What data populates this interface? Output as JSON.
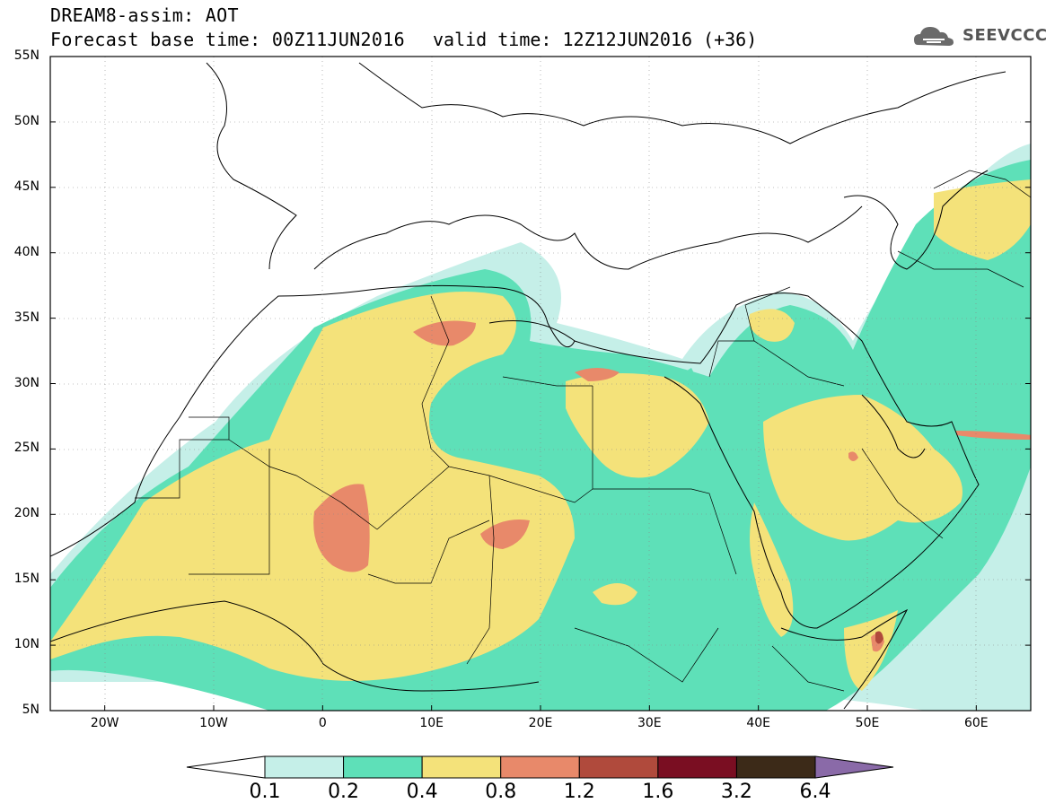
{
  "header": {
    "title": "DREAM8-assim: AOT",
    "base_time": "Forecast base time: 00Z11JUN2016",
    "valid_time": "valid time: 12Z12JUN2016 (+36)",
    "logo_text": "SEEVCCC"
  },
  "map": {
    "projection": "lat-lon",
    "lon_range": [
      -25,
      65
    ],
    "lat_range": [
      5,
      55
    ],
    "lat_ticks": [
      {
        "value": 55,
        "label": "55N"
      },
      {
        "value": 50,
        "label": "50N"
      },
      {
        "value": 45,
        "label": "45N"
      },
      {
        "value": 40,
        "label": "40N"
      },
      {
        "value": 35,
        "label": "35N"
      },
      {
        "value": 30,
        "label": "30N"
      },
      {
        "value": 25,
        "label": "25N"
      },
      {
        "value": 20,
        "label": "20N"
      },
      {
        "value": 15,
        "label": "15N"
      },
      {
        "value": 10,
        "label": "10N"
      },
      {
        "value": 5,
        "label": "5N"
      }
    ],
    "lon_ticks": [
      {
        "value": -20,
        "label": "20W"
      },
      {
        "value": -10,
        "label": "10W"
      },
      {
        "value": 0,
        "label": "0"
      },
      {
        "value": 10,
        "label": "10E"
      },
      {
        "value": 20,
        "label": "20E"
      },
      {
        "value": 30,
        "label": "30E"
      },
      {
        "value": 40,
        "label": "40E"
      },
      {
        "value": 50,
        "label": "50E"
      },
      {
        "value": 60,
        "label": "60E"
      }
    ],
    "grid": "dotted"
  },
  "colorbar": {
    "levels": [
      "0.1",
      "0.2",
      "0.4",
      "0.8",
      "1.2",
      "1.6",
      "3.2",
      "6.4"
    ],
    "colors": [
      "#c5efe8",
      "#5ee0b8",
      "#f4e27a",
      "#e8896a",
      "#b04a3c",
      "#7a0e22",
      "#3c2a18",
      "#8a6aa8"
    ],
    "under_color": "#ffffff"
  }
}
